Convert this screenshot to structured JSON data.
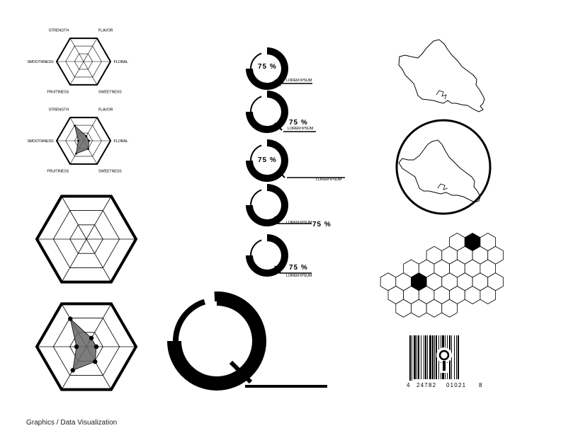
{
  "caption": "Graphics / Data Visualization",
  "chart_data": [
    {
      "type": "radar",
      "axes": [
        "STRENGTH",
        "FLAVOR",
        "FLORAL",
        "SWEETNESS",
        "FRUITINESS",
        "SMOOTHNESS"
      ],
      "levels": 3,
      "series": []
    },
    {
      "type": "radar",
      "axes": [
        "STRENGTH",
        "FLAVOR",
        "FLORAL",
        "SWEETNESS",
        "FRUITINESS",
        "SMOOTHNESS"
      ],
      "levels": 3,
      "series": [
        {
          "values": [
            0.65,
            0.2,
            0.2,
            0.35,
            0.55,
            0.2
          ]
        }
      ]
    },
    {
      "type": "radar",
      "axes": [],
      "levels": 3,
      "series": []
    },
    {
      "type": "radar",
      "axes": [],
      "levels": 3,
      "series": [
        {
          "values": [
            0.65,
            0.2,
            0.2,
            0.35,
            0.55,
            0.2
          ]
        }
      ]
    },
    {
      "type": "gauge",
      "gauges": [
        {
          "value": 75,
          "label": "75 %",
          "caption": "LOREM IPSUM"
        },
        {
          "value": 75,
          "label": "75 %",
          "caption": "LOREM IPSUM"
        },
        {
          "value": 75,
          "label": "75 %",
          "caption": "LOREM IPSUM"
        },
        {
          "value": 75,
          "label": "75 %",
          "caption": "LOREM IPSUM"
        },
        {
          "value": 75,
          "label": "75 %",
          "caption": "LOREM IPSUM"
        }
      ]
    },
    {
      "type": "gauge",
      "gauges": [
        {
          "value": 75
        }
      ]
    },
    {
      "type": "hexmap",
      "highlighted": 2
    },
    {
      "type": "barcode",
      "digits": [
        "4",
        "24782",
        "01021",
        "8"
      ]
    }
  ]
}
